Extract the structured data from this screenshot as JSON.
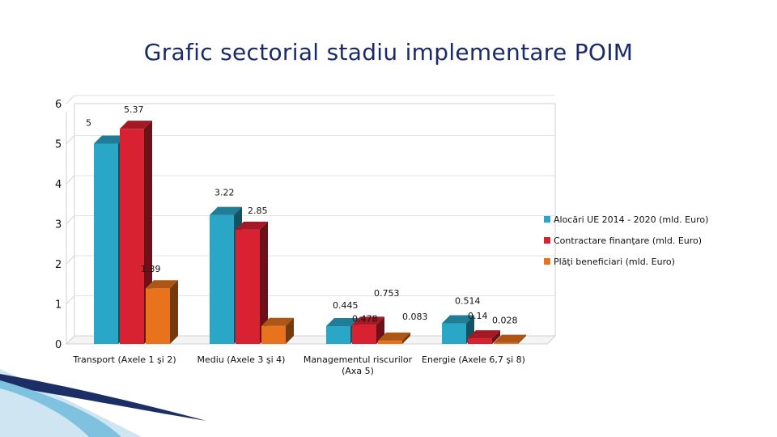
{
  "chart_data": {
    "type": "bar",
    "title": "Grafic sectorial stadiu implementare POIM",
    "xlabel": "",
    "ylabel": "",
    "ylim": [
      0,
      6
    ],
    "yticks": [
      "0",
      "1",
      "2",
      "3",
      "4",
      "5",
      "6"
    ],
    "grid": true,
    "legend_position": "right",
    "categories": [
      "Transport (Axele 1 şi 2)",
      "Mediu (Axele 3 şi 4)",
      "Managementul riscurilor (Axa 5)",
      "Energie (Axele 6,7 şi 8)"
    ],
    "series": [
      {
        "name": "Alocări UE 2014 - 2020 (mld. Euro)",
        "color": "#2aa6c6",
        "values": [
          5,
          3.22,
          0.445,
          0.514
        ],
        "labels": [
          "5",
          "3.22",
          "0.445",
          "0.514"
        ]
      },
      {
        "name": "Contractare finanţare (mld. Euro)",
        "color": "#d92231",
        "values": [
          5.37,
          2.85,
          0.478,
          0.14
        ],
        "labels": [
          "5.37",
          "2.85",
          "0.478",
          "0.14"
        ]
      },
      {
        "name": "Plăţi beneficiari (mld. Euro)",
        "color": "#e8731c",
        "values": [
          1.39,
          0.45,
          0.083,
          0.028
        ],
        "labels": [
          "1.39",
          "",
          "0.083",
          "0.028"
        ]
      }
    ],
    "annotations": [
      "0.753"
    ]
  }
}
